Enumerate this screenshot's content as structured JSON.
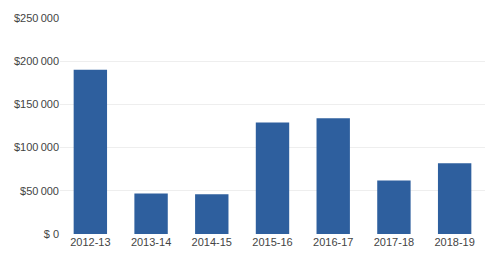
{
  "chart_data": {
    "type": "bar",
    "categories": [
      "2012-13",
      "2013-14",
      "2014-15",
      "2015-16",
      "2016-17",
      "2017-18",
      "2018-19"
    ],
    "values": [
      190000,
      47000,
      46000,
      129000,
      134000,
      62000,
      82000
    ],
    "color": "#2E5F9E",
    "ylim": [
      0,
      250000
    ],
    "yticks": [
      {
        "value": 0,
        "label": "$ 0"
      },
      {
        "value": 50000,
        "label": "$50 000"
      },
      {
        "value": 100000,
        "label": "$100 000"
      },
      {
        "value": 150000,
        "label": "$150 000"
      },
      {
        "value": 200000,
        "label": "$200 000"
      },
      {
        "value": 250000,
        "label": "$250 000"
      }
    ],
    "grid": true
  }
}
